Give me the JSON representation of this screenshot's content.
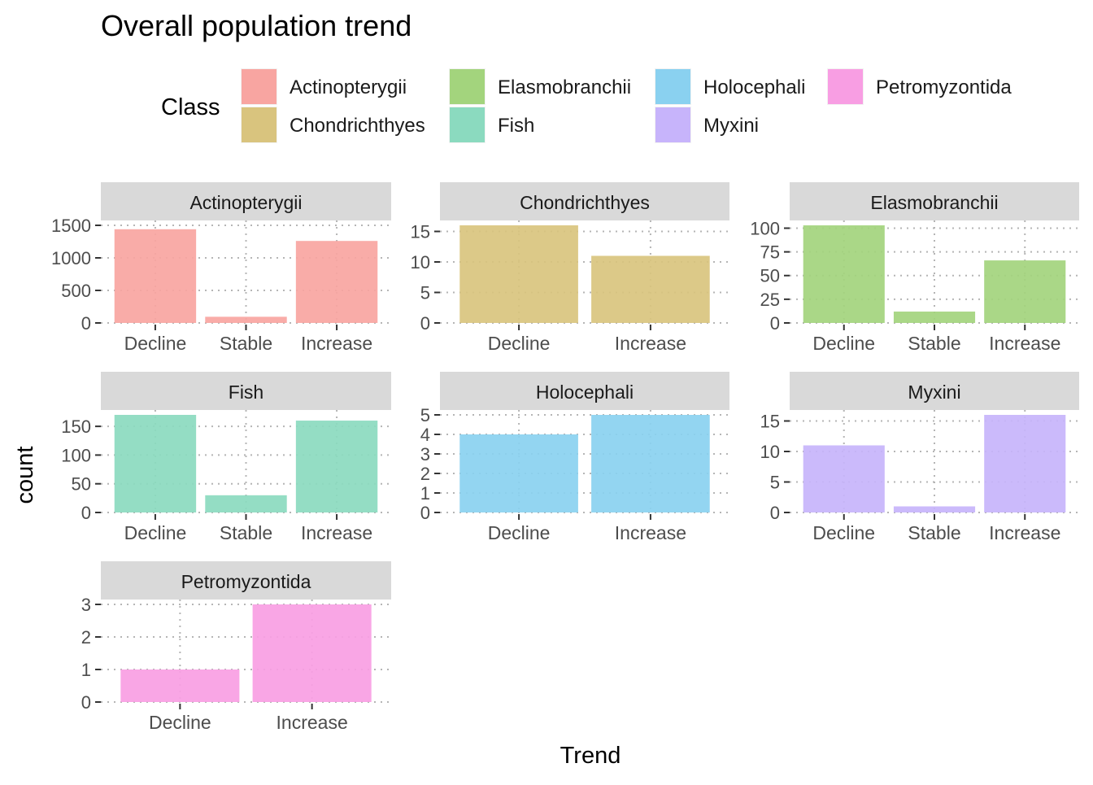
{
  "title": "Overall population trend",
  "xlabel": "Trend",
  "ylabel": "count",
  "legend": {
    "title": "Class",
    "placement": "top",
    "items": [
      {
        "name": "Actinopterygii",
        "color": "#F8A5A1"
      },
      {
        "name": "Chondrichthyes",
        "color": "#D9C47E"
      },
      {
        "name": "Elasmobranchii",
        "color": "#A3D47D"
      },
      {
        "name": "Fish",
        "color": "#8BDABF"
      },
      {
        "name": "Holocephali",
        "color": "#8AD1F0"
      },
      {
        "name": "Myxini",
        "color": "#C7B4FB"
      },
      {
        "name": "Petromyzontida",
        "color": "#F89EE3"
      }
    ]
  },
  "chart_data": [
    {
      "type": "bar",
      "title": "Actinopterygii",
      "categories": [
        "Decline",
        "Stable",
        "Increase"
      ],
      "values": [
        1440,
        95,
        1260
      ],
      "ylim": [
        0,
        1500
      ],
      "yticks": [
        0,
        500,
        1000,
        1500
      ],
      "grid": true
    },
    {
      "type": "bar",
      "title": "Chondrichthyes",
      "categories": [
        "Decline",
        "Increase"
      ],
      "values": [
        16,
        11
      ],
      "ylim": [
        0,
        16
      ],
      "yticks": [
        0,
        5,
        10,
        15
      ],
      "grid": true
    },
    {
      "type": "bar",
      "title": "Elasmobranchii",
      "categories": [
        "Decline",
        "Stable",
        "Increase"
      ],
      "values": [
        103,
        12,
        66
      ],
      "ylim": [
        0,
        103
      ],
      "yticks": [
        0,
        25,
        50,
        75,
        100
      ],
      "grid": true
    },
    {
      "type": "bar",
      "title": "Fish",
      "categories": [
        "Decline",
        "Stable",
        "Increase"
      ],
      "values": [
        170,
        30,
        160
      ],
      "ylim": [
        0,
        170
      ],
      "yticks": [
        0,
        50,
        100,
        150
      ],
      "grid": true
    },
    {
      "type": "bar",
      "title": "Holocephali",
      "categories": [
        "Decline",
        "Increase"
      ],
      "values": [
        4,
        5
      ],
      "ylim": [
        0,
        5
      ],
      "yticks": [
        0,
        1,
        2,
        3,
        4,
        5
      ],
      "grid": true
    },
    {
      "type": "bar",
      "title": "Myxini",
      "categories": [
        "Decline",
        "Stable",
        "Increase"
      ],
      "values": [
        11,
        1,
        16
      ],
      "ylim": [
        0,
        16
      ],
      "yticks": [
        0,
        5,
        10,
        15
      ],
      "grid": true
    },
    {
      "type": "bar",
      "title": "Petromyzontida",
      "categories": [
        "Decline",
        "Increase"
      ],
      "values": [
        1,
        3
      ],
      "ylim": [
        0,
        3
      ],
      "yticks": [
        0,
        1,
        2,
        3
      ],
      "grid": true
    }
  ]
}
